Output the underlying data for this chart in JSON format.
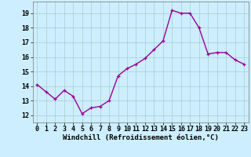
{
  "x": [
    0,
    1,
    2,
    3,
    4,
    5,
    6,
    7,
    8,
    9,
    10,
    11,
    12,
    13,
    14,
    15,
    16,
    17,
    18,
    19,
    20,
    21,
    22,
    23
  ],
  "y": [
    14.1,
    13.6,
    13.1,
    13.7,
    13.3,
    12.1,
    12.5,
    12.6,
    13.0,
    14.7,
    15.2,
    15.5,
    15.9,
    16.5,
    17.1,
    19.2,
    19.0,
    19.0,
    18.0,
    16.2,
    16.3,
    16.3,
    15.8,
    15.5
  ],
  "line_color": "#990099",
  "marker": "+",
  "marker_size": 3.5,
  "linewidth": 1.0,
  "bg_color": "#cceeff",
  "grid_color": "#aacccc",
  "xlabel": "Windchill (Refroidissement éolien,°C)",
  "xlabel_fontsize": 6.5,
  "tick_fontsize": 6.0,
  "ylim": [
    11.5,
    19.8
  ],
  "xlim": [
    -0.5,
    23.5
  ],
  "yticks": [
    12,
    13,
    14,
    15,
    16,
    17,
    18,
    19
  ],
  "xticks": [
    0,
    1,
    2,
    3,
    4,
    5,
    6,
    7,
    8,
    9,
    10,
    11,
    12,
    13,
    14,
    15,
    16,
    17,
    18,
    19,
    20,
    21,
    22,
    23
  ]
}
